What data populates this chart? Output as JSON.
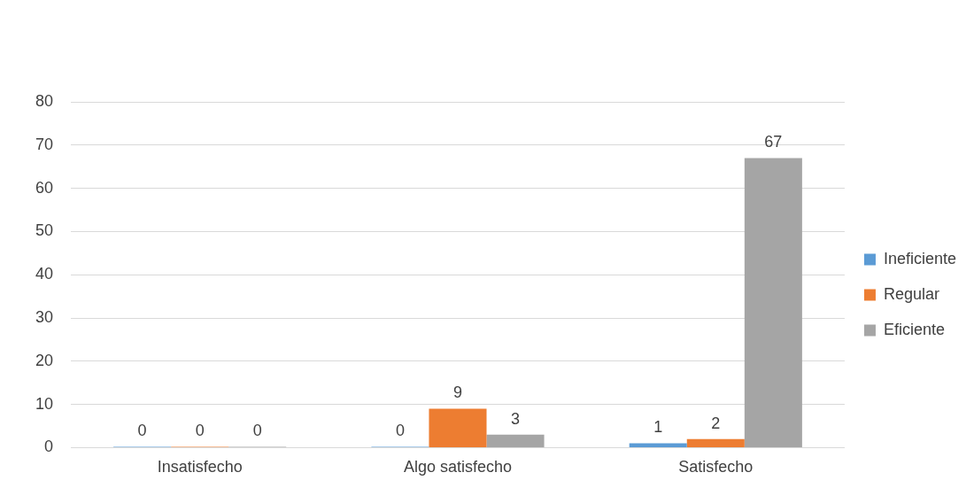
{
  "chart_data": {
    "type": "bar",
    "categories": [
      "Insatisfecho",
      "Algo satisfecho",
      "Satisfecho"
    ],
    "series": [
      {
        "name": "Ineficiente",
        "color": "#5b9bd5",
        "values": [
          0,
          0,
          1
        ]
      },
      {
        "name": "Regular",
        "color": "#ed7d31",
        "values": [
          0,
          9,
          2
        ]
      },
      {
        "name": "Eficiente",
        "color": "#a5a5a5",
        "values": [
          0,
          3,
          67
        ]
      }
    ],
    "ylim": [
      0,
      80
    ],
    "yticks": [
      0,
      10,
      20,
      30,
      40,
      50,
      60,
      70,
      80
    ],
    "grid": "y",
    "legend": "right",
    "data_labels": true
  }
}
